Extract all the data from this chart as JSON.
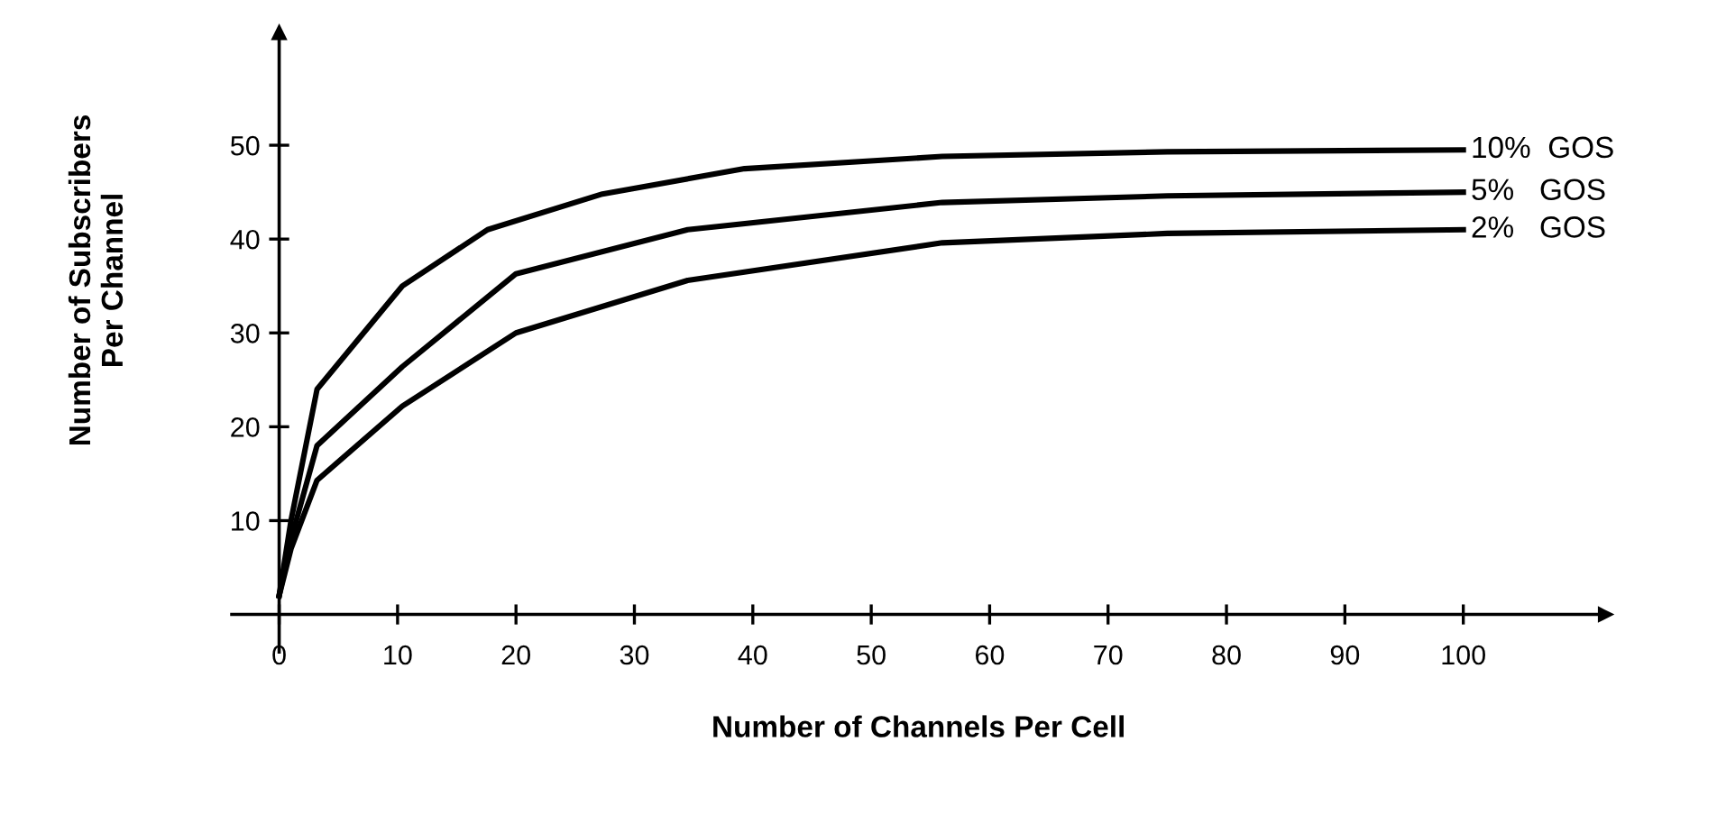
{
  "chart_data": {
    "type": "line",
    "xlabel": "Number of Channels Per Cell",
    "ylabel": "Number of Subscribers\nPer Channel",
    "xlim": [
      -4,
      112
    ],
    "ylim": [
      -4,
      62
    ],
    "xticks": [
      0,
      10,
      20,
      30,
      40,
      50,
      60,
      70,
      80,
      90,
      100
    ],
    "yticks": [
      10,
      20,
      30,
      40,
      50
    ],
    "grid": false,
    "legend": false,
    "marker": "none",
    "line_style": "solid",
    "series": [
      {
        "name": "10%  GOS",
        "color": "#000000",
        "x": [
          0,
          1,
          3.2,
          10.4,
          17.6,
          27.3,
          39.3,
          56,
          75,
          100
        ],
        "values": [
          2,
          10,
          24,
          35,
          41,
          44.8,
          47.5,
          48.8,
          49.3,
          49.5
        ]
      },
      {
        "name": "5%   GOS",
        "color": "#000000",
        "x": [
          0,
          1,
          3.2,
          10.4,
          20,
          34.5,
          56,
          75,
          100
        ],
        "values": [
          2,
          8,
          18,
          26.4,
          36.3,
          41,
          43.9,
          44.6,
          45
        ]
      },
      {
        "name": "2%   GOS",
        "color": "#000000",
        "x": [
          0,
          1,
          3.2,
          10.4,
          20,
          34.5,
          56,
          75,
          100
        ],
        "values": [
          2,
          7,
          14.3,
          22.2,
          30,
          35.6,
          39.6,
          40.6,
          41
        ]
      }
    ]
  }
}
